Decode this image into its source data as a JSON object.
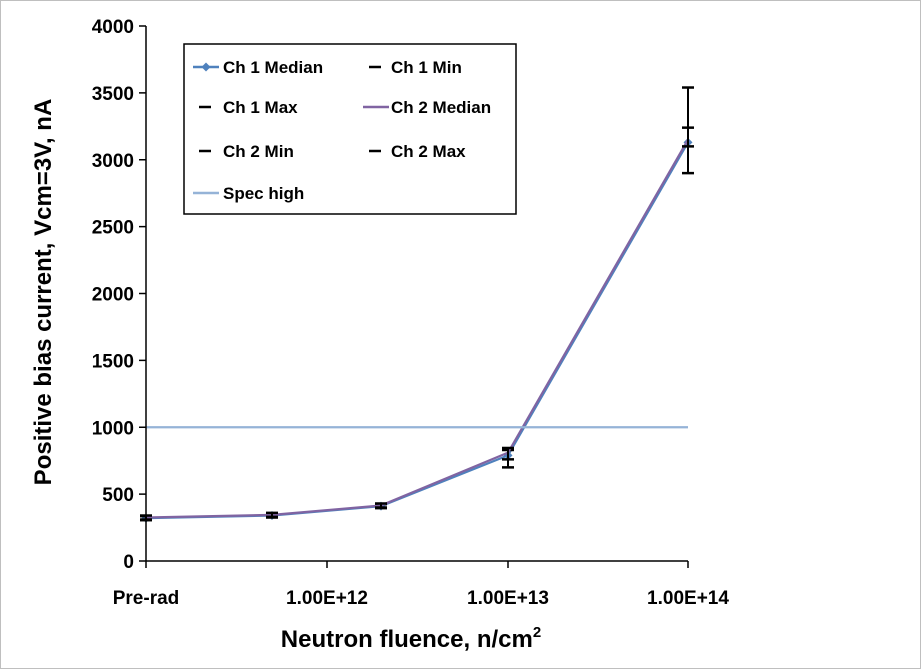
{
  "chart_data": {
    "type": "line",
    "xlabel": "Neutron fluence, n/cm",
    "xlabel_superscript": "2",
    "ylabel": "Positive bias current,  Vcm=3V, nA",
    "ylim": [
      0,
      4000
    ],
    "yticks": [
      "0",
      "500",
      "1000",
      "1500",
      "2000",
      "2500",
      "3000",
      "3500",
      "4000"
    ],
    "xtick_labels": [
      "Pre-rad",
      "1.00E+12",
      "1.00E+13",
      "1.00E+14"
    ],
    "grid": false,
    "legend_position": "top-left",
    "x_points": [
      "Pre-rad",
      "5.00E+11",
      "2.00E+12",
      "1.00E+13",
      "1.00E+14"
    ],
    "series": [
      {
        "name": "Ch 1 Median",
        "values": [
          320,
          340,
          410,
          790,
          3130
        ],
        "color": "#4f81bd",
        "marker": "diamond"
      },
      {
        "name": "Ch 1 Min",
        "values": [
          305,
          325,
          395,
          700,
          2900
        ],
        "color": "#000000",
        "marker": "dash"
      },
      {
        "name": "Ch 1 Max",
        "values": [
          335,
          355,
          425,
          830,
          3540
        ],
        "color": "#000000",
        "marker": "dash"
      },
      {
        "name": "Ch 2 Median",
        "values": [
          325,
          345,
          415,
          810,
          3150
        ],
        "color": "#8064a2",
        "marker": "none"
      },
      {
        "name": "Ch 2 Min",
        "values": [
          310,
          330,
          400,
          760,
          3100
        ],
        "color": "#000000",
        "marker": "dash"
      },
      {
        "name": "Ch 2 Max",
        "values": [
          340,
          360,
          430,
          845,
          3240
        ],
        "color": "#000000",
        "marker": "dash"
      },
      {
        "name": "Spec high",
        "values": [
          1000,
          1000,
          1000,
          1000,
          1000
        ],
        "color": "#95b3d7",
        "marker": "none"
      }
    ]
  }
}
